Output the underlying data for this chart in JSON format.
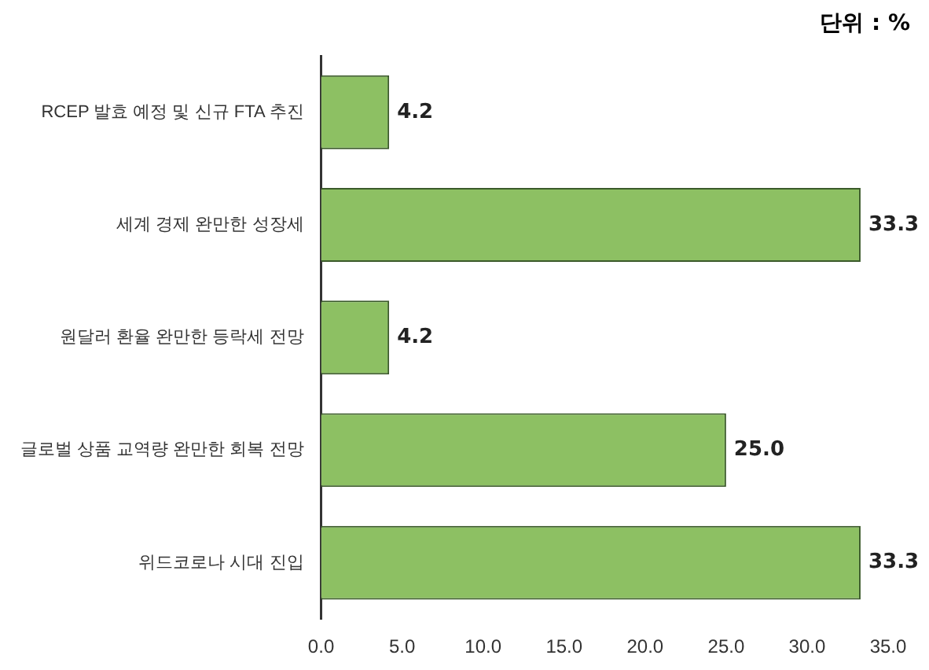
{
  "chart_data": {
    "type": "bar",
    "orientation": "horizontal",
    "categories": [
      "RCEP 발효 예정 및 신규 FTA 추진",
      "세계 경제 완만한 성장세",
      "원달러 환율 완만한 등락세 전망",
      "글로벌 상품 교역량 완만한 회복 전망",
      "위드코로나 시대 진입"
    ],
    "values": [
      4.2,
      33.3,
      4.2,
      25.0,
      33.3
    ],
    "value_labels": [
      "4.2",
      "33.3",
      "4.2",
      "25.0",
      "33.3"
    ],
    "color": "#8dc063",
    "xlim": [
      0,
      35
    ],
    "xticks": [
      {
        "value": 0,
        "label": "0.0"
      },
      {
        "value": 5,
        "label": "5.0"
      },
      {
        "value": 10,
        "label": "10.0"
      },
      {
        "value": 15,
        "label": "15.0"
      },
      {
        "value": 20,
        "label": "20.0"
      },
      {
        "value": 25,
        "label": "25.0"
      },
      {
        "value": 30,
        "label": "30.0"
      },
      {
        "value": 35,
        "label": "35.0"
      }
    ],
    "grid": false,
    "annotations": [
      "단위 : %"
    ]
  }
}
